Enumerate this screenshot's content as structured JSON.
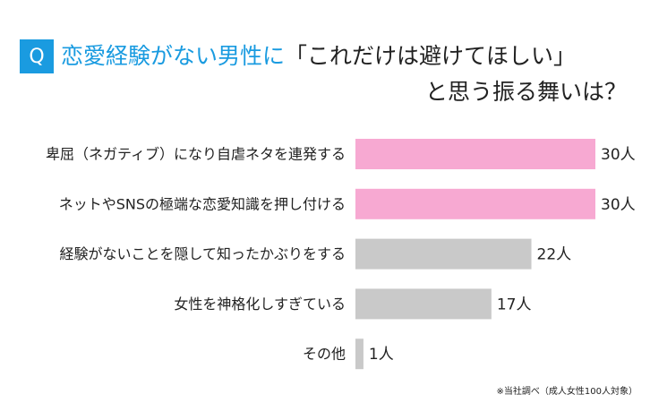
{
  "chart_data": {
    "type": "hbar",
    "badge": "Q",
    "title_parts": [
      "恋愛経験がない男性に",
      "「これだけは避けてほしい」",
      "と思う振る舞いは？"
    ],
    "title_colors": [
      "#1a9be0",
      "#222222",
      "#222222"
    ],
    "categories": [
      "卑屈（ネガティブ）になり自虐ネタを連発する",
      "ネットやSNSの極端な恋愛知識を押し付ける",
      "経験がないことを隠して知ったかぶりをする",
      "女性を神格化しすぎている",
      "その他"
    ],
    "values": [
      30,
      30,
      22,
      17,
      1
    ],
    "value_labels": [
      "30人",
      "30人",
      "22人",
      "17人",
      "1人"
    ],
    "colors": [
      "#f7a9d2",
      "#f7a9d2",
      "#c9c9c9",
      "#c9c9c9",
      "#c9c9c9"
    ],
    "note": "※当社調べ（成人女性100人対象）"
  }
}
